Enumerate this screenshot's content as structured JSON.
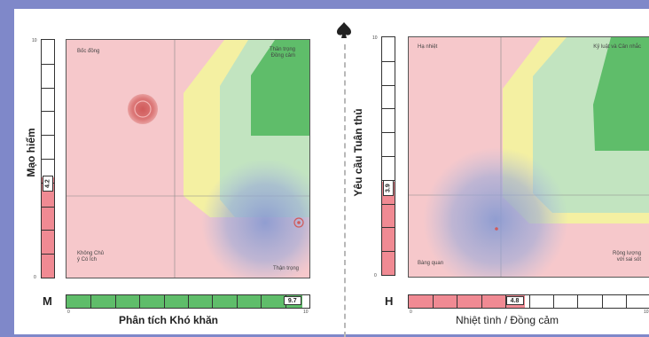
{
  "colors": {
    "page_bg": "#7f88c9",
    "zone_pink": "#f6c8cb",
    "zone_yellow": "#f4f0a2",
    "zone_light_green": "#c2e4c0",
    "zone_green": "#5fbd6a",
    "scale_red": "#f08a93",
    "scale_green": "#5fbd6a",
    "marker_red": "#d96b6b",
    "blur_blue": "#8b9bd1"
  },
  "divider": {
    "icon": "spade-icon"
  },
  "left_panel": {
    "zones": {
      "top_left": "Bốc đồng",
      "top_right_line1": "Thần trọng",
      "top_right_line2": "Đồng cảm",
      "bottom_left_line1": "Không Chủ",
      "bottom_left_line2": "ý Có Ích",
      "bottom_right": "Thận trọng"
    },
    "vertical_scale": {
      "letter": "M",
      "label": "Mạo hiểm",
      "value": "4.2",
      "value_num": 4.2,
      "tick_top": "10",
      "tick_bottom": "0"
    },
    "horizontal_scale": {
      "label": "Phân tích Khó khăn",
      "value": "9.7",
      "value_num": 9.7,
      "tick_left": "0",
      "tick_right": "10"
    }
  },
  "right_panel": {
    "zones": {
      "top_left": "Hạ nhiệt",
      "top_right": "Kỷ luật và Cân nhắc",
      "bottom_left": "Bàng quan",
      "bottom_right_line1": "Rộng lượng",
      "bottom_right_line2": "với sai sót"
    },
    "vertical_scale": {
      "letter": "H",
      "label": "Yêu cầu Tuân thủ",
      "value": "3.9",
      "value_num": 3.9,
      "tick_top": "10",
      "tick_bottom": "0"
    },
    "horizontal_scale": {
      "label": "Nhiệt tình / Đồng cảm",
      "value": "4.8",
      "value_num": 4.8,
      "tick_left": "0",
      "tick_right": "10"
    }
  }
}
